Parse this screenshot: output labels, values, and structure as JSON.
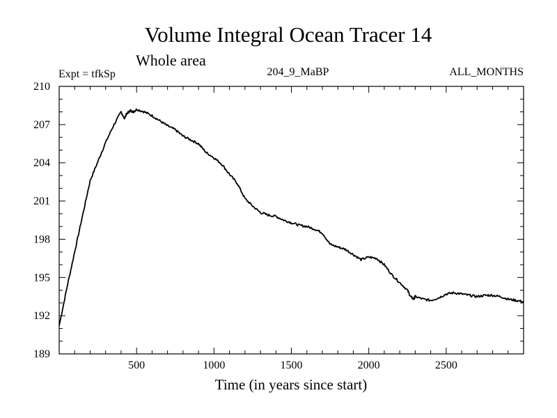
{
  "chart_data": {
    "type": "line",
    "title": "Volume Integral Ocean Tracer 14",
    "subtitle": "Whole area",
    "annotations": {
      "left": "Expt = tfkSp",
      "center": "204_9_MaBP",
      "right": "ALL_MONTHS"
    },
    "xlabel": "Time (in years since start)",
    "ylabel": "",
    "xlim": [
      0,
      3000
    ],
    "ylim": [
      189,
      210
    ],
    "xticks": [
      500,
      1000,
      1500,
      2000,
      2500
    ],
    "yticks": [
      189,
      192,
      195,
      198,
      201,
      204,
      207,
      210
    ],
    "grid": false,
    "series": [
      {
        "name": "tfkSp",
        "color": "#000000",
        "x": [
          0,
          50,
          100,
          150,
          200,
          250,
          300,
          350,
          400,
          420,
          440,
          460,
          480,
          500,
          550,
          600,
          650,
          700,
          750,
          800,
          850,
          900,
          950,
          1000,
          1050,
          1100,
          1150,
          1200,
          1250,
          1300,
          1350,
          1400,
          1450,
          1500,
          1550,
          1600,
          1650,
          1700,
          1750,
          1800,
          1850,
          1900,
          1950,
          2000,
          2050,
          2100,
          2150,
          2200,
          2250,
          2270,
          2290,
          2300,
          2350,
          2400,
          2450,
          2500,
          2550,
          2600,
          2650,
          2700,
          2750,
          2800,
          2850,
          2900,
          2950,
          3000
        ],
        "y": [
          191.2,
          194.2,
          197.0,
          199.8,
          202.6,
          204.1,
          205.6,
          206.9,
          208.0,
          207.5,
          207.9,
          208.1,
          208.0,
          208.2,
          208.0,
          207.7,
          207.3,
          206.9,
          206.6,
          206.1,
          205.8,
          205.5,
          204.8,
          204.4,
          203.9,
          203.1,
          202.4,
          201.2,
          200.6,
          200.1,
          199.9,
          199.8,
          199.5,
          199.3,
          199.1,
          199.0,
          198.8,
          198.5,
          197.6,
          197.4,
          197.2,
          196.8,
          196.4,
          196.6,
          196.5,
          196.0,
          195.2,
          194.6,
          194.0,
          193.5,
          193.3,
          193.5,
          193.3,
          193.2,
          193.4,
          193.7,
          193.8,
          193.7,
          193.6,
          193.5,
          193.6,
          193.6,
          193.5,
          193.3,
          193.2,
          193.1
        ]
      }
    ]
  }
}
